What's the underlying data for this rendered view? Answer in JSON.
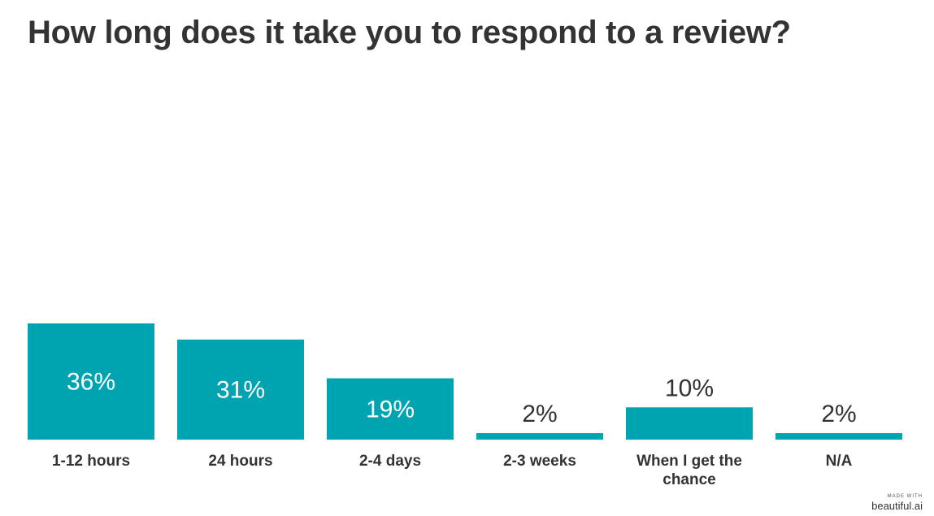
{
  "colors": {
    "bar": "#00a3b0",
    "text": "#333333",
    "label_inside": "#ffffff"
  },
  "chart_data": {
    "type": "bar",
    "title": "How long does it take you to respond to a review?",
    "categories": [
      "1-12 hours",
      "24 hours",
      "2-4 days",
      "2-3 weeks",
      "When I get the chance",
      "N/A"
    ],
    "values": [
      36,
      31,
      19,
      2,
      10,
      2
    ],
    "value_labels": [
      "36%",
      "31%",
      "19%",
      "2%",
      "10%",
      "2%"
    ],
    "unit": "%",
    "ylim": [
      0,
      36
    ],
    "grid": false,
    "legend": "none",
    "xlabel": "",
    "ylabel": ""
  },
  "badge": {
    "made_with": "MADE WITH",
    "brand": "beautiful.ai"
  }
}
